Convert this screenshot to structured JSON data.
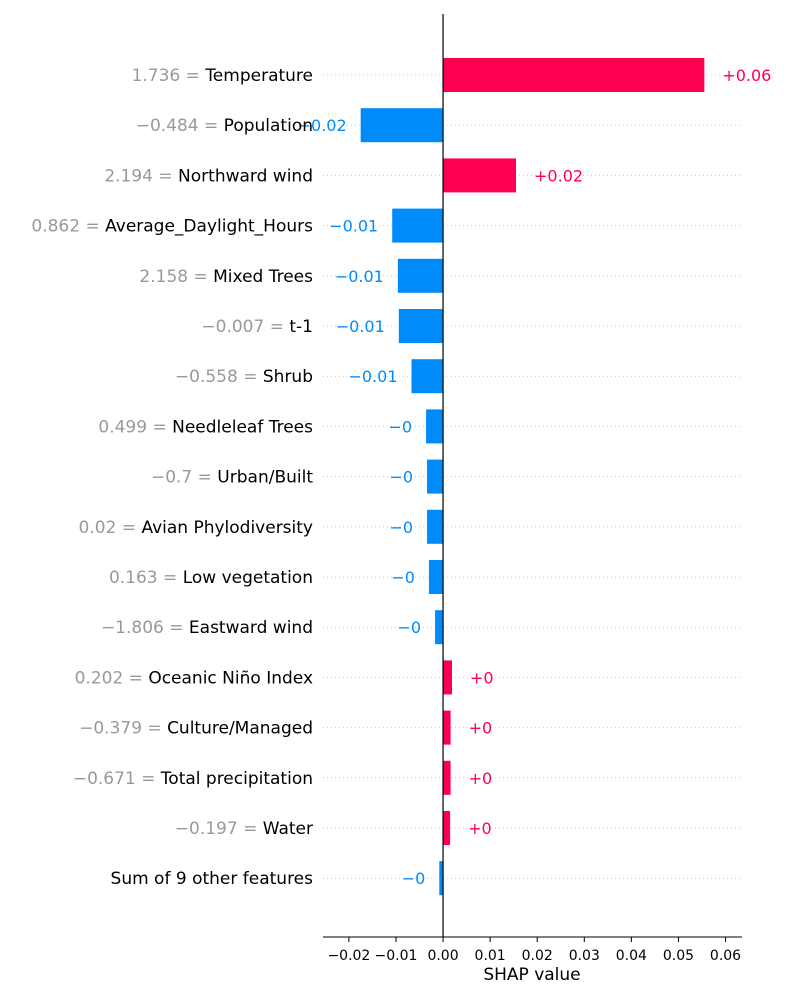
{
  "chart_data": {
    "type": "bar",
    "orientation": "horizontal",
    "xlabel": "SHAP value",
    "xlim": [
      -0.0255,
      0.0635
    ],
    "xticks": [
      -0.02,
      -0.01,
      0.0,
      0.01,
      0.02,
      0.03,
      0.04,
      0.05,
      0.06
    ],
    "xtick_labels": [
      "−0.02",
      "−0.01",
      "0.00",
      "0.01",
      "0.02",
      "0.03",
      "0.04",
      "0.05",
      "0.06"
    ],
    "grid": "horizontal dotted",
    "colors": {
      "positive": "#ff0051",
      "negative": "#008bfb",
      "feature_value": "#999999",
      "axis": "#000000",
      "grid": "#cccccc"
    },
    "rows": [
      {
        "feature_value": "1.736",
        "feature": "Temperature",
        "value": 0.0555,
        "label": "+0.06"
      },
      {
        "feature_value": "−0.484",
        "feature": "Population",
        "value": -0.0175,
        "label": "−0.02"
      },
      {
        "feature_value": "2.194",
        "feature": "Northward wind",
        "value": 0.0155,
        "label": "+0.02"
      },
      {
        "feature_value": "0.862",
        "feature": "Average_Daylight_Hours",
        "value": -0.0108,
        "label": "−0.01"
      },
      {
        "feature_value": "2.158",
        "feature": "Mixed Trees",
        "value": -0.0096,
        "label": "−0.01"
      },
      {
        "feature_value": "−0.007",
        "feature": "t-1",
        "value": -0.0094,
        "label": "−0.01"
      },
      {
        "feature_value": "−0.558",
        "feature": "Shrub",
        "value": -0.0067,
        "label": "−0.01"
      },
      {
        "feature_value": "0.499",
        "feature": "Needleleaf Trees",
        "value": -0.0036,
        "label": "−0"
      },
      {
        "feature_value": "−0.7",
        "feature": "Urban/Built",
        "value": -0.0034,
        "label": "−0"
      },
      {
        "feature_value": "0.02",
        "feature": "Avian Phylodiversity",
        "value": -0.0034,
        "label": "−0"
      },
      {
        "feature_value": "0.163",
        "feature": "Low vegetation",
        "value": -0.003,
        "label": "−0"
      },
      {
        "feature_value": "−1.806",
        "feature": "Eastward wind",
        "value": -0.0017,
        "label": "−0"
      },
      {
        "feature_value": "0.202",
        "feature": "Oceanic Niño Index",
        "value": 0.0019,
        "label": "+0"
      },
      {
        "feature_value": "−0.379",
        "feature": "Culture/Managed",
        "value": 0.0016,
        "label": "+0"
      },
      {
        "feature_value": "−0.671",
        "feature": "Total precipitation",
        "value": 0.0016,
        "label": "+0"
      },
      {
        "feature_value": "−0.197",
        "feature": "Water",
        "value": 0.0015,
        "label": "+0"
      },
      {
        "feature_value": "",
        "feature": "Sum of 9 other features",
        "value": -0.0008,
        "label": "−0"
      }
    ]
  }
}
